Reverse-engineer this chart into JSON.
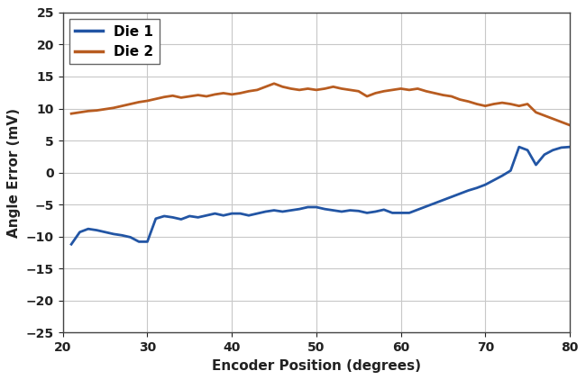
{
  "xlabel": "Encoder Position (degrees)",
  "ylabel": "Angle Error (mV)",
  "xlim": [
    20,
    80
  ],
  "ylim": [
    -25,
    25
  ],
  "xticks": [
    20,
    30,
    40,
    50,
    60,
    70,
    80
  ],
  "yticks": [
    -25,
    -20,
    -15,
    -10,
    -5,
    0,
    5,
    10,
    15,
    20,
    25
  ],
  "die1_color": "#2255a4",
  "die2_color": "#b85c20",
  "legend_labels": [
    "Die 1",
    "Die 2"
  ],
  "die1_x": [
    21,
    22,
    23,
    24,
    25,
    26,
    27,
    28,
    29,
    30,
    31,
    32,
    33,
    34,
    35,
    36,
    37,
    38,
    39,
    40,
    41,
    42,
    43,
    44,
    45,
    46,
    47,
    48,
    49,
    50,
    51,
    52,
    53,
    54,
    55,
    56,
    57,
    58,
    59,
    60,
    61,
    62,
    63,
    64,
    65,
    66,
    67,
    68,
    69,
    70,
    71,
    72,
    73,
    74,
    75,
    76,
    77,
    78,
    79,
    80
  ],
  "die1_y": [
    -11.2,
    -9.3,
    -8.8,
    -9.0,
    -9.3,
    -9.6,
    -9.8,
    -10.1,
    -10.8,
    -10.8,
    -7.2,
    -6.8,
    -7.0,
    -7.3,
    -6.8,
    -7.0,
    -6.7,
    -6.4,
    -6.7,
    -6.4,
    -6.4,
    -6.7,
    -6.4,
    -6.1,
    -5.9,
    -6.1,
    -5.9,
    -5.7,
    -5.4,
    -5.4,
    -5.7,
    -5.9,
    -6.1,
    -5.9,
    -6.0,
    -6.3,
    -6.1,
    -5.8,
    -6.3,
    -6.3,
    -6.3,
    -5.8,
    -5.3,
    -4.8,
    -4.3,
    -3.8,
    -3.3,
    -2.8,
    -2.4,
    -1.9,
    -1.2,
    -0.5,
    0.3,
    4.0,
    3.5,
    1.2,
    2.8,
    3.5,
    3.9,
    4.0
  ],
  "die2_x": [
    21,
    22,
    23,
    24,
    25,
    26,
    27,
    28,
    29,
    30,
    31,
    32,
    33,
    34,
    35,
    36,
    37,
    38,
    39,
    40,
    41,
    42,
    43,
    44,
    45,
    46,
    47,
    48,
    49,
    50,
    51,
    52,
    53,
    54,
    55,
    56,
    57,
    58,
    59,
    60,
    61,
    62,
    63,
    64,
    65,
    66,
    67,
    68,
    69,
    70,
    71,
    72,
    73,
    74,
    75,
    76,
    77,
    78,
    79,
    80
  ],
  "die2_y": [
    9.2,
    9.4,
    9.6,
    9.7,
    9.9,
    10.1,
    10.4,
    10.7,
    11.0,
    11.2,
    11.5,
    11.8,
    12.0,
    11.7,
    11.9,
    12.1,
    11.9,
    12.2,
    12.4,
    12.2,
    12.4,
    12.7,
    12.9,
    13.4,
    13.9,
    13.4,
    13.1,
    12.9,
    13.1,
    12.9,
    13.1,
    13.4,
    13.1,
    12.9,
    12.7,
    11.9,
    12.4,
    12.7,
    12.9,
    13.1,
    12.9,
    13.1,
    12.7,
    12.4,
    12.1,
    11.9,
    11.4,
    11.1,
    10.7,
    10.4,
    10.7,
    10.9,
    10.7,
    10.4,
    10.7,
    9.4,
    8.9,
    8.4,
    7.9,
    7.4
  ],
  "linewidth": 2.0,
  "grid_color": "#c8c8c8",
  "bg_color": "#ffffff",
  "axis_label_fontsize": 11,
  "tick_fontsize": 10,
  "legend_fontsize": 11
}
